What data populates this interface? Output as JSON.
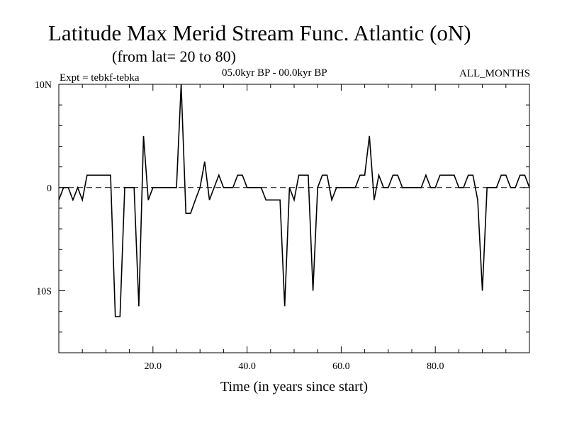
{
  "header": {
    "title": "Latitude Max Merid Stream Func. Atlantic (oN)",
    "subtitle": "(from lat= 20 to 80)",
    "expt": "Expt = tebkf-tebka",
    "period": "05.0kyr BP - 00.0kyr BP",
    "months": "ALL_MONTHS"
  },
  "chart_data": {
    "type": "line",
    "title": "Latitude Max Merid Stream Func. Atlantic (oN)",
    "xlabel": "Time (in years since start)",
    "ylabel": "",
    "xlim": [
      0,
      100
    ],
    "ylim": [
      -16,
      10
    ],
    "xticks": [
      20,
      40,
      60,
      80
    ],
    "xtick_labels": [
      "20.0",
      "40.0",
      "60.0",
      "80.0"
    ],
    "yticks": [
      10,
      0,
      -10
    ],
    "ytick_labels": [
      "10N",
      "0",
      "10S"
    ],
    "zero_line": true,
    "series": [
      {
        "name": "tebkf-tebka",
        "x": [
          0,
          1,
          2,
          3,
          4,
          5,
          6,
          7,
          8,
          9,
          10,
          11,
          12,
          13,
          14,
          15,
          16,
          17,
          18,
          19,
          20,
          21,
          22,
          23,
          24,
          25,
          26,
          27,
          28,
          29,
          30,
          31,
          32,
          33,
          34,
          35,
          36,
          37,
          38,
          39,
          40,
          41,
          42,
          43,
          44,
          45,
          46,
          47,
          48,
          49,
          50,
          51,
          52,
          53,
          54,
          55,
          56,
          57,
          58,
          59,
          60,
          61,
          62,
          63,
          64,
          65,
          66,
          67,
          68,
          69,
          70,
          71,
          72,
          73,
          74,
          75,
          76,
          77,
          78,
          79,
          80,
          81,
          82,
          83,
          84,
          85,
          86,
          87,
          88,
          89,
          90,
          91,
          92,
          93,
          94,
          95,
          96,
          97,
          98,
          99,
          100
        ],
        "y": [
          -1.2,
          0,
          0,
          -1.2,
          0,
          -1.2,
          1.2,
          1.2,
          1.2,
          1.2,
          1.2,
          1.2,
          -12.5,
          -12.5,
          0,
          0,
          0,
          -11.5,
          5,
          -1.2,
          0,
          0,
          0,
          0,
          0,
          0,
          10,
          -2.5,
          -2.5,
          -1.2,
          0,
          2.5,
          -1.2,
          0,
          1.2,
          0,
          0,
          0,
          1.2,
          1.2,
          0,
          0,
          0,
          0,
          -1.2,
          -1.2,
          -1.2,
          -1.2,
          -11.5,
          0,
          -1.2,
          1.2,
          1.2,
          1.2,
          -10,
          0,
          1.2,
          1.2,
          -1.2,
          0,
          0,
          0,
          0,
          0,
          1.2,
          1.2,
          5,
          -1.2,
          1.2,
          0,
          0,
          1.2,
          1.2,
          0,
          0,
          0,
          0,
          0,
          1.2,
          0,
          0,
          1.2,
          1.2,
          1.2,
          1.2,
          0,
          0,
          1.2,
          1.2,
          -1.2,
          -10,
          0,
          0,
          0,
          1.2,
          1.2,
          0,
          0,
          1.2,
          1.2,
          0
        ]
      }
    ]
  }
}
